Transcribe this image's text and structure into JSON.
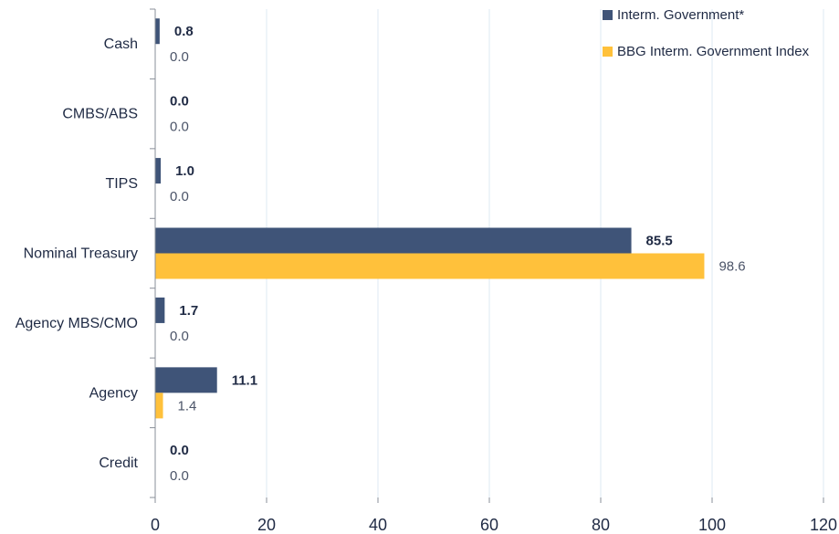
{
  "chart_data": {
    "type": "bar",
    "orientation": "horizontal",
    "categories": [
      "Cash",
      "CMBS/ABS",
      "TIPS",
      "Nominal Treasury",
      "Agency MBS/CMO",
      "Agency",
      "Credit"
    ],
    "series": [
      {
        "name": "Interm. Government*",
        "values": [
          0.8,
          0.0,
          1.0,
          85.5,
          1.7,
          11.1,
          0.0
        ],
        "labels": [
          "0.8",
          "0.0",
          "1.0",
          "85.5",
          "1.7",
          "11.1",
          "0.0"
        ],
        "color": "#3f5478"
      },
      {
        "name": "BBG Interm. Government Index",
        "values": [
          0.0,
          0.0,
          0.0,
          98.6,
          0.0,
          1.4,
          0.0
        ],
        "labels": [
          "0.0",
          "0.0",
          "0.0",
          "98.6",
          "0.0",
          "1.4",
          "0.0"
        ],
        "color": "#ffc13b"
      }
    ],
    "xlim": [
      0,
      120
    ],
    "xticks": [
      "0",
      "20",
      "40",
      "60",
      "80",
      "100",
      "120"
    ],
    "grid": true,
    "legend": "top-right"
  }
}
